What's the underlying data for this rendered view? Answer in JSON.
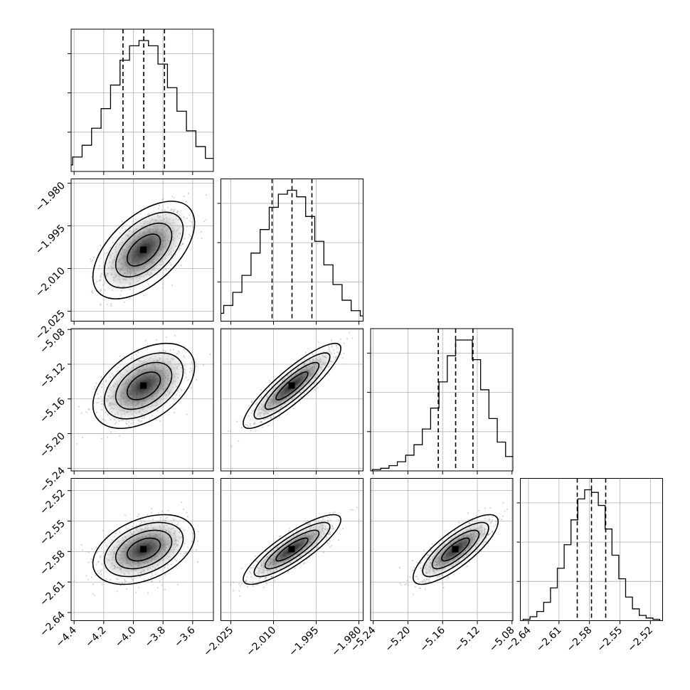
{
  "chart_data": {
    "type": "corner",
    "params": [
      {
        "name": "",
        "ticks": [
          -4.4,
          -4.2,
          -4.0,
          -3.8,
          -3.6
        ],
        "tick_labels": [
          "−4.4",
          "−4.2",
          "−4.0",
          "−3.8",
          "−3.6"
        ],
        "range": [
          -4.42,
          -3.46
        ],
        "quantiles": [
          -4.07,
          -3.93,
          -3.79
        ],
        "mean": -3.93,
        "sd": 0.14
      },
      {
        "name": "",
        "ticks": [
          -2.025,
          -2.01,
          -1.995,
          -1.98
        ],
        "tick_labels": [
          "−2.025",
          "−2.010",
          "−1.995",
          "−1.980"
        ],
        "range": [
          -2.0285,
          -1.9785
        ],
        "quantiles": [
          -2.0105,
          -2.0035,
          -1.9965
        ],
        "mean": -2.0035,
        "sd": 0.007
      },
      {
        "name": "",
        "ticks": [
          -5.24,
          -5.2,
          -5.16,
          -5.12,
          -5.08
        ],
        "tick_labels": [
          "−5.24",
          "−5.20",
          "−5.16",
          "−5.12",
          "−5.08"
        ],
        "range": [
          -5.243,
          -5.079
        ],
        "quantiles": [
          -5.165,
          -5.145,
          -5.125
        ],
        "mean": -5.145,
        "sd": 0.02
      },
      {
        "name": "",
        "ticks": [
          -2.64,
          -2.61,
          -2.58,
          -2.55,
          -2.52
        ],
        "tick_labels": [
          "−2.64",
          "−2.61",
          "−2.58",
          "−2.55",
          "−2.52"
        ],
        "range": [
          -2.648,
          -2.508
        ],
        "quantiles": [
          -2.592,
          -2.578,
          -2.564
        ],
        "mean": -2.578,
        "sd": 0.014
      }
    ],
    "correlations": {
      "1-0": 0.55,
      "2-0": 0.45,
      "2-1": 0.88,
      "3-0": 0.4,
      "3-1": 0.85,
      "3-2": 0.8
    },
    "histograms": {
      "0": [
        0.01,
        0.02,
        0.05,
        0.11,
        0.2,
        0.33,
        0.48,
        0.66,
        0.85,
        0.96,
        1.0,
        0.96,
        0.82,
        0.64,
        0.46,
        0.31,
        0.19,
        0.1,
        0.05,
        0.02,
        0.01
      ],
      "1": [
        0.01,
        0.03,
        0.06,
        0.12,
        0.22,
        0.35,
        0.52,
        0.7,
        0.87,
        0.97,
        1.0,
        0.95,
        0.8,
        0.61,
        0.43,
        0.28,
        0.16,
        0.08,
        0.04,
        0.02,
        0.01
      ],
      "2": [
        0.01,
        0.02,
        0.04,
        0.07,
        0.12,
        0.2,
        0.32,
        0.48,
        0.68,
        0.88,
        1.0,
        1.0,
        0.85,
        0.62,
        0.4,
        0.22,
        0.11,
        0.05,
        0.02,
        0.01
      ],
      "3": [
        0.01,
        0.03,
        0.07,
        0.14,
        0.25,
        0.4,
        0.58,
        0.77,
        0.93,
        1.0,
        0.98,
        0.88,
        0.7,
        0.5,
        0.32,
        0.18,
        0.09,
        0.04,
        0.02,
        0.01
      ]
    }
  }
}
